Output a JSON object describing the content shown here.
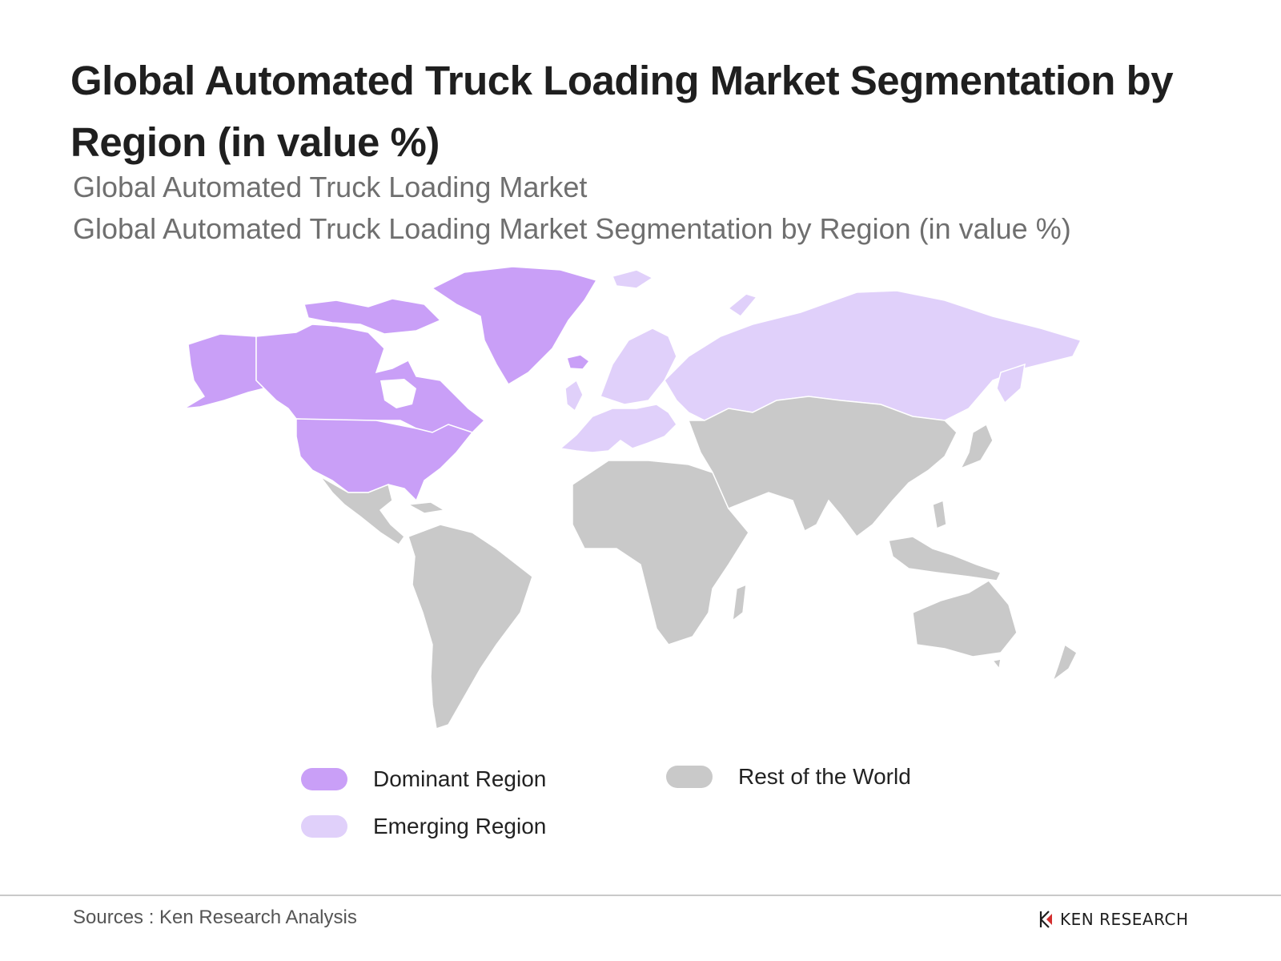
{
  "title": "Global Automated Truck Loading Market Segmentation by Region (in value %)",
  "subtitle_1": "Global Automated Truck Loading Market",
  "subtitle_2": "Global Automated Truck Loading Market Segmentation by Region (in value %)",
  "legend": [
    {
      "label": "Dominant Region",
      "color": "#c99ff7"
    },
    {
      "label": "Emerging Region",
      "color": "#e0d0fa"
    },
    {
      "label": "Rest of the World",
      "color": "#c9c9c9"
    }
  ],
  "regions": {
    "north_america_greenland": "dominant",
    "europe_russia": "emerging",
    "latin_america_africa_asia_oceania": "rest"
  },
  "sources": "Sources : Ken Research Analysis",
  "brand": {
    "name": "KEN RESEARCH",
    "icon": "ken-research-logo-icon"
  }
}
